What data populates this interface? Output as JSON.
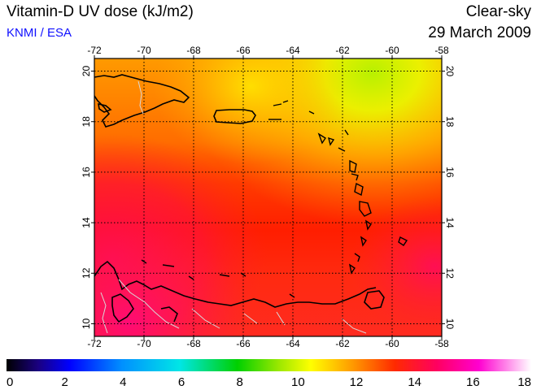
{
  "header": {
    "title": "Vitamin-D UV dose (kJ/m2)",
    "source": "KNMI / ESA",
    "condition": "Clear-sky",
    "date": "29 March 2009"
  },
  "map": {
    "lon_ticks": [
      "-72",
      "-70",
      "-68",
      "-66",
      "-64",
      "-62",
      "-60",
      "-58"
    ],
    "lat_ticks": [
      "20",
      "18",
      "16",
      "14",
      "12",
      "10"
    ],
    "lon_range": [
      -72,
      -58
    ],
    "lat_range": [
      9.5,
      20.5
    ],
    "grid": true
  },
  "colorbar": {
    "ticks": [
      "0",
      "2",
      "4",
      "6",
      "8",
      "10",
      "12",
      "14",
      "16",
      "18"
    ],
    "range": [
      0,
      18
    ]
  },
  "colors": {
    "title_accent": "#1010ff",
    "coast": "#000000",
    "border": "#d8d8d8"
  }
}
